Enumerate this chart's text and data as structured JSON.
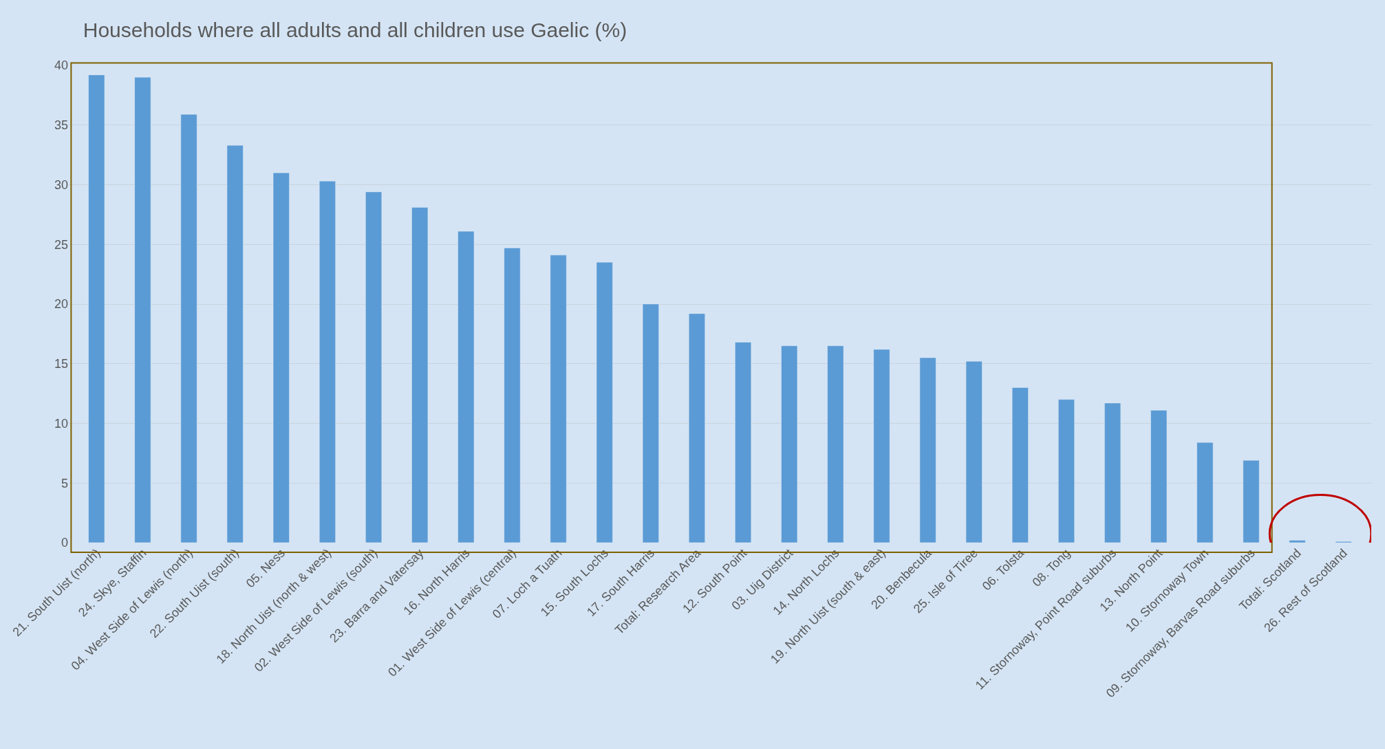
{
  "chart_data": {
    "type": "bar",
    "title": "Households where all adults and all children use Gaelic (%)",
    "categories": [
      "21. South Uist (north)",
      "24. Skye, Staffin",
      "04. West Side of Lewis (north)",
      "22. South Uist (south)",
      "05. Ness",
      "18. North Uist (north & west)",
      "02. West Side of Lewis (south)",
      "23. Barra and Vatersay",
      "16. North Harris",
      "01. West Side of Lewis (central)",
      "07. Loch a Tuath",
      "15. South Lochs",
      "17. South Harris",
      "Total: Research Area",
      "12. South Point",
      "03. Uig District",
      "14. North Lochs",
      "19. North Uist (south & east)",
      "20. Benbecula",
      "25. Isle of Tiree",
      "06. Tolsta",
      "08. Tong",
      "11. Stornoway, Point Road suburbs",
      "13. North Point",
      "10. Stornoway Town",
      "09. Stornoway, Barvas Road suburbs",
      "Total: Scotland",
      "26. Rest of Scotland"
    ],
    "values": [
      39.2,
      39.0,
      35.9,
      33.3,
      31.0,
      30.3,
      29.4,
      28.1,
      26.1,
      24.7,
      24.1,
      23.5,
      20.0,
      19.2,
      16.8,
      16.5,
      16.5,
      16.2,
      15.5,
      15.2,
      13.0,
      12.0,
      11.7,
      11.1,
      8.4,
      6.9,
      0.2,
      0.1
    ],
    "color": "#5b9bd5",
    "ylim": [
      0,
      40
    ],
    "yticks": [
      0,
      5,
      10,
      15,
      20,
      25,
      30,
      35,
      40
    ],
    "grid": "y",
    "legend": false
  }
}
